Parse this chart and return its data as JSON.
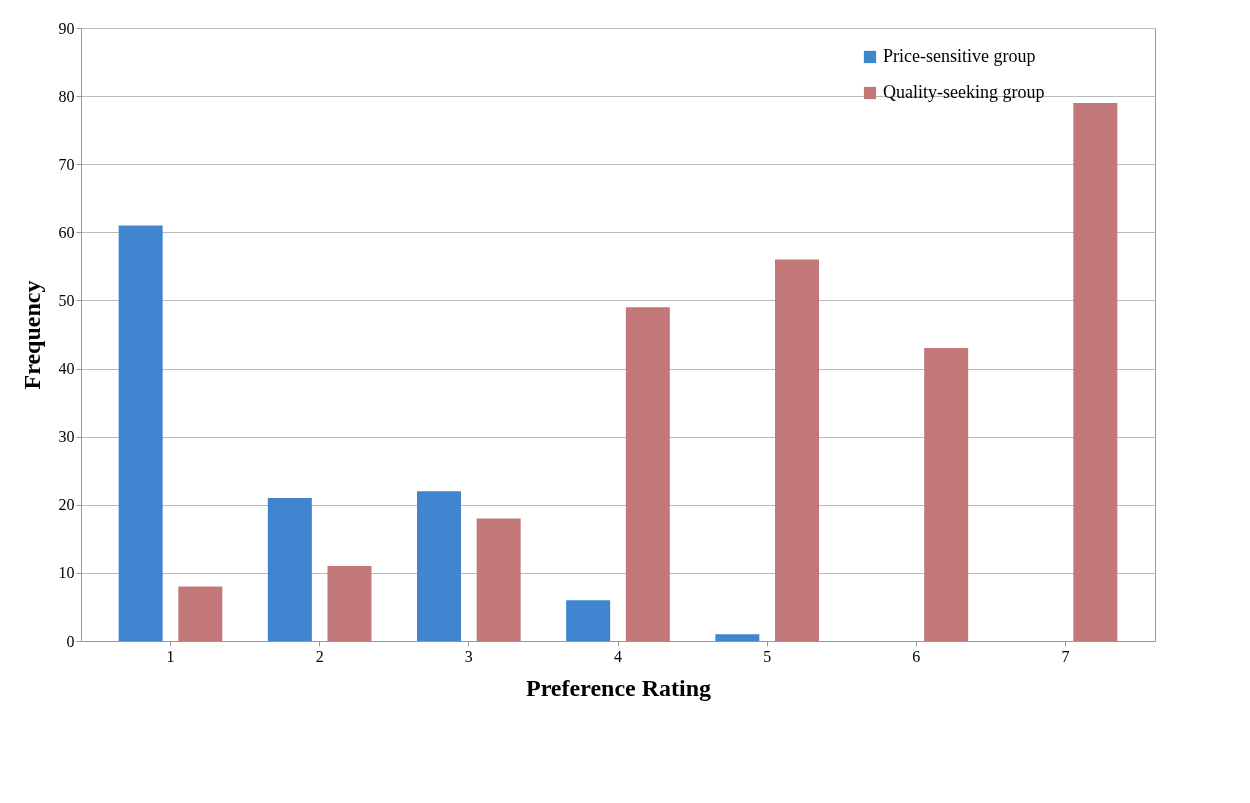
{
  "chart_data": {
    "type": "bar",
    "xlabel": "Preference Rating",
    "ylabel": "Frequency",
    "categories": [
      "1",
      "2",
      "3",
      "4",
      "5",
      "6",
      "7"
    ],
    "series": [
      {
        "name": "Price-sensitive group",
        "color": "#3f85cf",
        "values": [
          61,
          21,
          22,
          6,
          1,
          0,
          0
        ]
      },
      {
        "name": "Quality-seeking group",
        "color": "#c27878",
        "values": [
          8,
          11,
          18,
          49,
          56,
          43,
          79
        ]
      }
    ],
    "ylim": [
      0,
      90
    ],
    "yticks": [
      0,
      10,
      20,
      30,
      40,
      50,
      60,
      70,
      80,
      90
    ],
    "grid": "y",
    "legend": "top right"
  }
}
